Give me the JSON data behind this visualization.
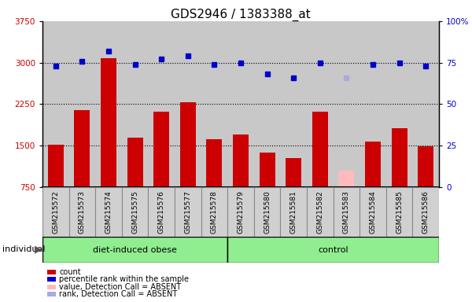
{
  "title": "GDS2946 / 1383388_at",
  "samples": [
    "GSM215572",
    "GSM215573",
    "GSM215574",
    "GSM215575",
    "GSM215576",
    "GSM215577",
    "GSM215578",
    "GSM215579",
    "GSM215580",
    "GSM215581",
    "GSM215582",
    "GSM215583",
    "GSM215584",
    "GSM215585",
    "GSM215586"
  ],
  "bar_values": [
    1520,
    2150,
    3080,
    1650,
    2120,
    2280,
    1620,
    1700,
    1380,
    1270,
    2120,
    1050,
    1580,
    1820,
    1490
  ],
  "bar_colors": [
    "#cc0000",
    "#cc0000",
    "#cc0000",
    "#cc0000",
    "#cc0000",
    "#cc0000",
    "#cc0000",
    "#cc0000",
    "#cc0000",
    "#cc0000",
    "#cc0000",
    "#ffbbbb",
    "#cc0000",
    "#cc0000",
    "#cc0000"
  ],
  "dot_values_pct": [
    73,
    76,
    82,
    74,
    77,
    79,
    74,
    75,
    68,
    66,
    75,
    66,
    74,
    75,
    73
  ],
  "dot_absent": [
    false,
    false,
    false,
    false,
    false,
    false,
    false,
    false,
    false,
    false,
    false,
    true,
    false,
    false,
    false
  ],
  "ylim_left": [
    750,
    3750
  ],
  "ylim_right": [
    0,
    100
  ],
  "yticks_left": [
    750,
    1500,
    2250,
    3000,
    3750
  ],
  "yticks_right": [
    0,
    25,
    50,
    75,
    100
  ],
  "group1_label": "diet-induced obese",
  "group1_indices": [
    0,
    1,
    2,
    3,
    4,
    5,
    6
  ],
  "group2_label": "control",
  "group2_indices": [
    7,
    8,
    9,
    10,
    11,
    12,
    13,
    14
  ],
  "individual_label": "individual",
  "legend_items": [
    {
      "label": "count",
      "color": "#cc0000"
    },
    {
      "label": "percentile rank within the sample",
      "color": "#0000cc"
    },
    {
      "label": "value, Detection Call = ABSENT",
      "color": "#ffbbbb"
    },
    {
      "label": "rank, Detection Call = ABSENT",
      "color": "#aaaadd"
    }
  ],
  "dot_color_normal": "#0000cc",
  "dot_color_absent": "#aaaadd",
  "bar_width": 0.6,
  "plot_bg": "#c8c8c8",
  "cell_bg": "#d0d0d0",
  "group_bg": "#90ee90",
  "title_fontsize": 11,
  "tick_fontsize": 6.5,
  "axis_color_left": "#cc0000",
  "axis_color_right": "#0000cc"
}
